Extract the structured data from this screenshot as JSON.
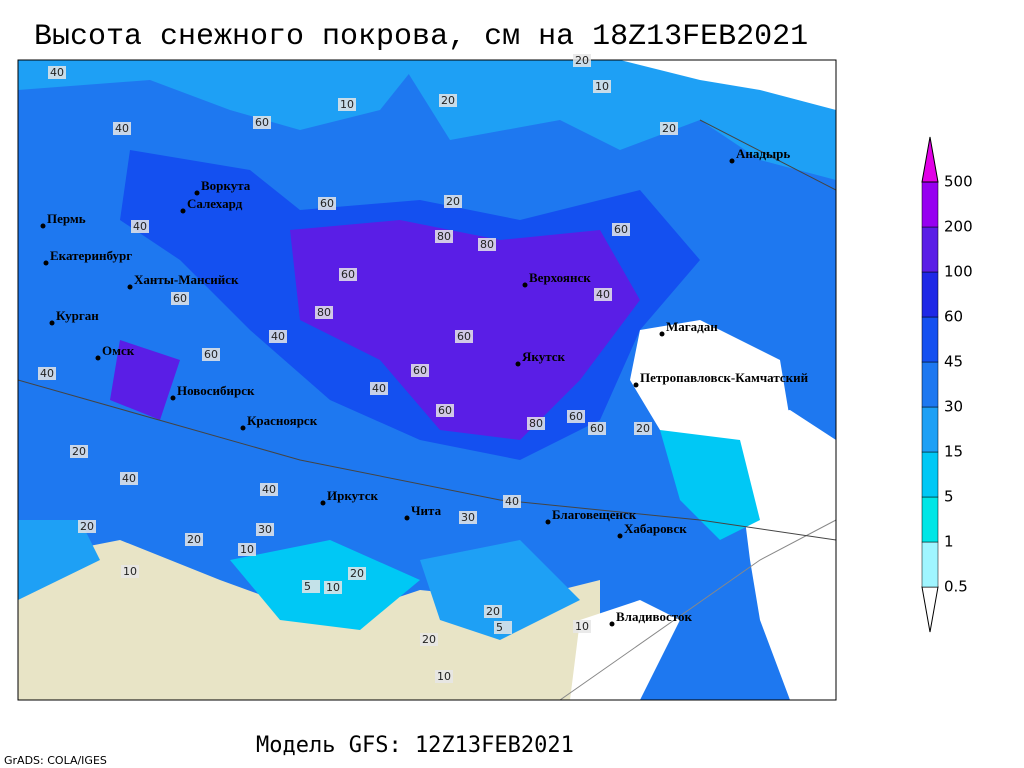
{
  "header": {
    "title": "Высота снежного покрова, см на 18Z13FEB2021"
  },
  "footer": {
    "model": "Модель GFS: 12Z13FEB2021",
    "credit": "GrADS: COLA/IGES"
  },
  "legend": {
    "levels": [
      0.5,
      1,
      5,
      15,
      30,
      45,
      60,
      100,
      200,
      500
    ],
    "colors": [
      "#ffffff",
      "#a0f5ff",
      "#00e6e6",
      "#00c8f5",
      "#1ea0f5",
      "#1e78f0",
      "#1450f0",
      "#1e28e6",
      "#5a1ee6",
      "#9600f0",
      "#e100e6"
    ]
  },
  "cities": [
    "Анадырь",
    "Воркута",
    "Салехард",
    "Пермь",
    "Екатеринбург",
    "Ханты-Мансийск",
    "Курган",
    "Омск",
    "Новосибирск",
    "Красноярск",
    "Верхоянск",
    "Магадан",
    "Якутск",
    "Петропавловск-Камчатский",
    "Иркутск",
    "Чита",
    "Благовещенск",
    "Хабаровск",
    "Владивосток"
  ],
  "contour_labels": [
    40,
    60,
    40,
    10,
    20,
    20,
    10,
    20,
    40,
    60,
    80,
    60,
    80,
    60,
    20,
    80,
    60,
    60,
    40,
    60,
    60,
    40,
    60,
    60,
    80,
    40,
    20,
    40,
    60,
    20,
    40,
    40,
    40,
    30,
    30,
    20,
    20,
    10,
    10,
    5,
    20,
    20,
    10,
    5,
    10,
    20,
    10
  ]
}
